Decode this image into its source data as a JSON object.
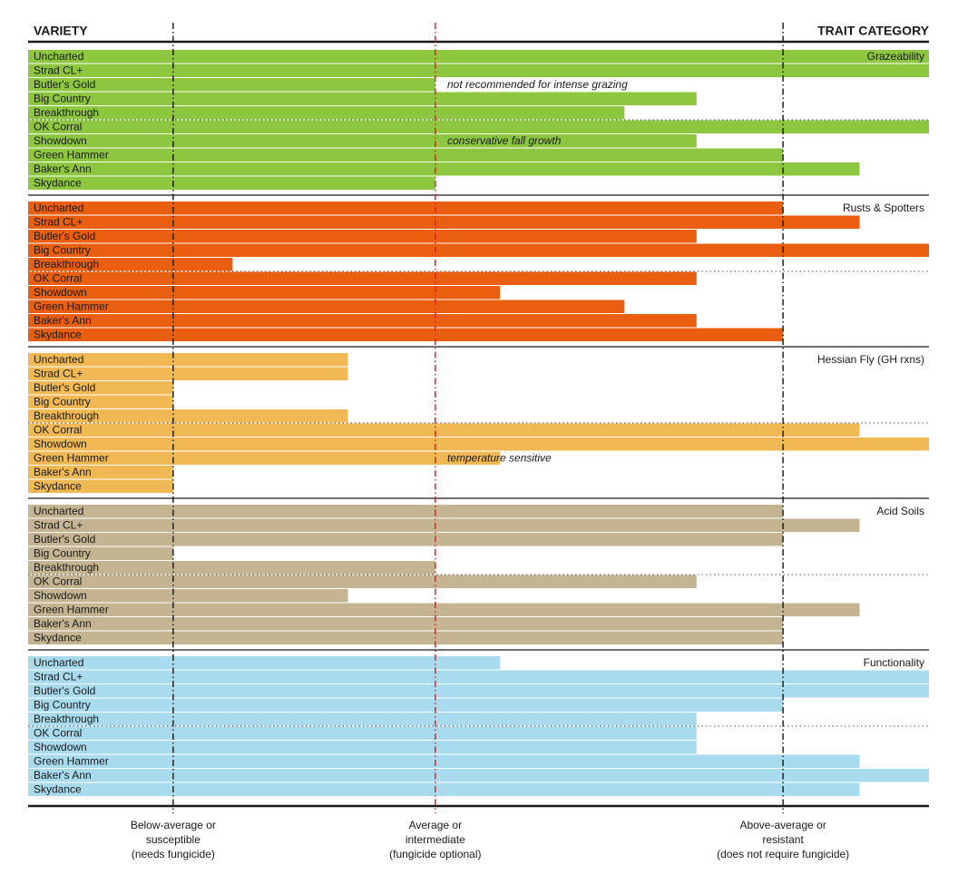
{
  "chart_data": {
    "type": "bar",
    "left_header": "VARIETY",
    "right_header": "TRAIT CATEGORY",
    "categories": [
      "Uncharted",
      "Strad CL+",
      "Butler's Gold",
      "Big Country",
      "Breakthrough",
      "OK Corral",
      "Showdown",
      "Green Hammer",
      "Baker's Ann",
      "Skydance"
    ],
    "xlim": [
      0,
      100
    ],
    "xticks": [
      {
        "value": 16.1,
        "label": [
          "Below-average or",
          "susceptible",
          "(needs fungicide)"
        ],
        "color": "#222222"
      },
      {
        "value": 45.2,
        "label": [
          "Average or",
          "intermediate",
          "(fungicide optional)"
        ],
        "color": "#e8202a"
      },
      {
        "value": 83.8,
        "label": [
          "Above-average or",
          "resistant",
          "(does not require fungicide)"
        ],
        "color": "#222222"
      }
    ],
    "series": [
      {
        "name": "Grazeability",
        "color": "#8dc63f",
        "values": [
          100,
          100,
          45.2,
          74.2,
          66.2,
          100,
          74.2,
          83.8,
          92.3,
          45.2
        ],
        "notes": [
          null,
          null,
          "not recommended for intense grazing",
          null,
          null,
          null,
          "conservative fall growth",
          null,
          null,
          null
        ]
      },
      {
        "name": "Rusts & Spotters",
        "color": "#e95e0f",
        "values": [
          83.8,
          92.3,
          74.2,
          100,
          22.7,
          74.2,
          52.4,
          66.2,
          74.2,
          83.8
        ]
      },
      {
        "name": "Hessian Fly (GH rxns)",
        "color": "#f0b954",
        "values": [
          35.5,
          35.5,
          16.1,
          16.1,
          35.5,
          92.3,
          100,
          52.4,
          16.1,
          16.1
        ],
        "notes": [
          null,
          null,
          null,
          null,
          null,
          null,
          null,
          "temperature sensitive",
          null,
          null
        ]
      },
      {
        "name": "Acid Soils",
        "color": "#c4b491",
        "values": [
          83.8,
          92.3,
          83.8,
          16.1,
          45.2,
          74.2,
          35.5,
          92.3,
          83.8,
          83.8
        ]
      },
      {
        "name": "Functionality",
        "color": "#a8dbee",
        "values": [
          52.4,
          100,
          100,
          83.8,
          74.2,
          74.2,
          74.2,
          92.3,
          100,
          92.3
        ]
      }
    ]
  }
}
